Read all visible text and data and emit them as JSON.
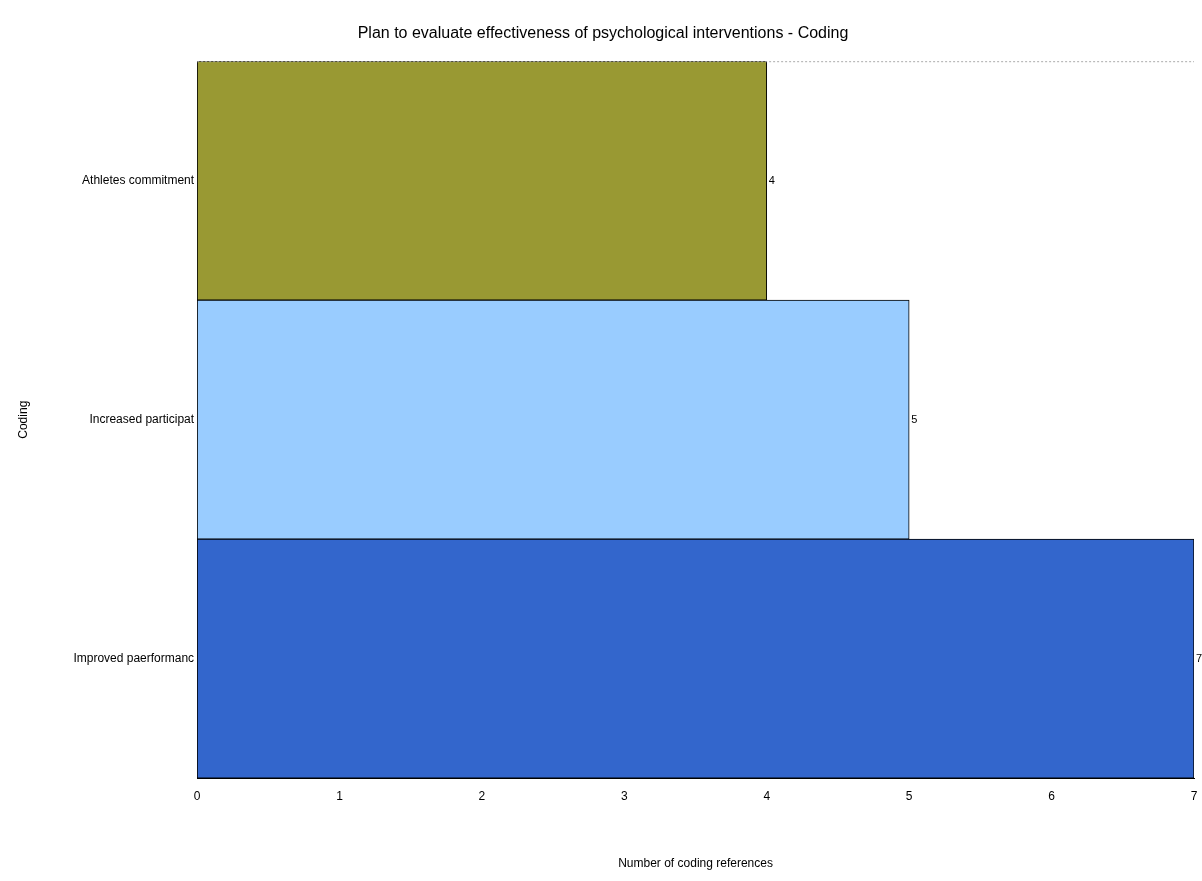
{
  "chart_data": {
    "type": "bar",
    "orientation": "horizontal",
    "title": "Plan to evaluate effectiveness of psychological interventions - Coding",
    "xlabel": "Number of coding references",
    "ylabel": "Coding",
    "categories": [
      "Athletes commitment",
      "Increased participat",
      "Improved paerformanc"
    ],
    "values": [
      4,
      5,
      7
    ],
    "colors": [
      "#999933",
      "#99ccff",
      "#3366cc"
    ],
    "xlim": [
      0,
      7
    ],
    "xticks": [
      0,
      1,
      2,
      3,
      4,
      5,
      6,
      7
    ],
    "grid": false,
    "legend": false,
    "data_labels": true
  }
}
